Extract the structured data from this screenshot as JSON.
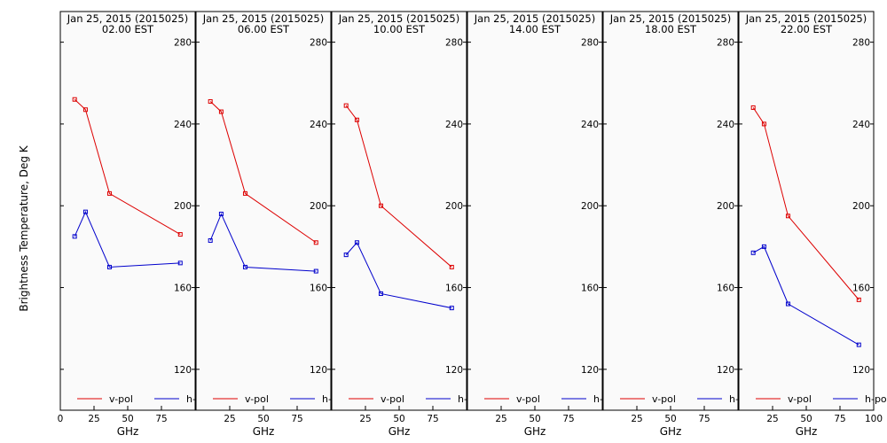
{
  "colors": {
    "background": "#ffffff",
    "plot_background": "#fafafa",
    "v_pol": "#dd0000",
    "h_pol": "#0000cc",
    "axis": "#000000"
  },
  "ylabel": "Brightness Temperature, Deg K",
  "chart_data": [
    {
      "type": "line",
      "title": "Jan 25, 2015 (2015025)",
      "subtitle": "02.00 EST",
      "xlabel": "GHz",
      "xlim": [
        0,
        100
      ],
      "ylim": [
        100,
        295
      ],
      "x_ticks": [
        "0",
        "25",
        "50",
        "75"
      ],
      "y_ticks": [
        "120",
        "160",
        "200",
        "240",
        "280"
      ],
      "series": [
        {
          "name": "v-pol",
          "x": [
            10.65,
            18.7,
            36.5,
            89
          ],
          "y": [
            252,
            247,
            206,
            186
          ]
        },
        {
          "name": "h-pol",
          "x": [
            10.65,
            18.7,
            36.5,
            89
          ],
          "y": [
            185,
            197,
            170,
            172
          ]
        }
      ]
    },
    {
      "type": "line",
      "title": "Jan 25, 2015 (2015025)",
      "subtitle": "06.00 EST",
      "xlabel": "GHz",
      "xlim": [
        0,
        100
      ],
      "ylim": [
        100,
        295
      ],
      "x_ticks": [
        "25",
        "50",
        "75"
      ],
      "y_ticks": [
        "120",
        "160",
        "200",
        "240",
        "280"
      ],
      "series": [
        {
          "name": "v-pol",
          "x": [
            10.65,
            18.7,
            36.5,
            89
          ],
          "y": [
            251,
            246,
            206,
            182
          ]
        },
        {
          "name": "h-pol",
          "x": [
            10.65,
            18.7,
            36.5,
            89
          ],
          "y": [
            183,
            196,
            170,
            168
          ]
        }
      ]
    },
    {
      "type": "line",
      "title": "Jan 25, 2015 (2015025)",
      "subtitle": "10.00 EST",
      "xlabel": "GHz",
      "xlim": [
        0,
        100
      ],
      "ylim": [
        100,
        295
      ],
      "x_ticks": [
        "25",
        "50",
        "75"
      ],
      "y_ticks": [
        "120",
        "160",
        "200",
        "240",
        "280"
      ],
      "series": [
        {
          "name": "v-pol",
          "x": [
            10.65,
            18.7,
            36.5,
            89
          ],
          "y": [
            249,
            242,
            200,
            170
          ]
        },
        {
          "name": "h-pol",
          "x": [
            10.65,
            18.7,
            36.5,
            89
          ],
          "y": [
            176,
            182,
            157,
            150
          ]
        }
      ]
    },
    {
      "type": "line",
      "title": "Jan 25, 2015 (2015025)",
      "subtitle": "14.00 EST",
      "xlabel": "GHz",
      "xlim": [
        0,
        100
      ],
      "ylim": [
        100,
        295
      ],
      "x_ticks": [
        "25",
        "50",
        "75"
      ],
      "y_ticks": [
        "120",
        "160",
        "200",
        "240",
        "280"
      ],
      "series": [
        {
          "name": "v-pol",
          "x": [],
          "y": []
        },
        {
          "name": "h-pol",
          "x": [],
          "y": []
        }
      ]
    },
    {
      "type": "line",
      "title": "Jan 25, 2015 (2015025)",
      "subtitle": "18.00 EST",
      "xlabel": "GHz",
      "xlim": [
        0,
        100
      ],
      "ylim": [
        100,
        295
      ],
      "x_ticks": [
        "25",
        "50",
        "75"
      ],
      "y_ticks": [
        "120",
        "160",
        "200",
        "240",
        "280"
      ],
      "series": [
        {
          "name": "v-pol",
          "x": [],
          "y": []
        },
        {
          "name": "h-pol",
          "x": [],
          "y": []
        }
      ]
    },
    {
      "type": "line",
      "title": "Jan 25, 2015 (2015025)",
      "subtitle": "22.00 EST",
      "xlabel": "GHz",
      "xlim": [
        0,
        100
      ],
      "ylim": [
        100,
        295
      ],
      "x_ticks": [
        "25",
        "50",
        "75",
        "100"
      ],
      "y_ticks": [
        "120",
        "160",
        "200",
        "240",
        "280"
      ],
      "series": [
        {
          "name": "v-pol",
          "x": [
            10.65,
            18.7,
            36.5,
            89
          ],
          "y": [
            248,
            240,
            195,
            154
          ]
        },
        {
          "name": "h-pol",
          "x": [
            10.65,
            18.7,
            36.5,
            89
          ],
          "y": [
            177,
            180,
            152,
            132
          ]
        }
      ]
    }
  ]
}
